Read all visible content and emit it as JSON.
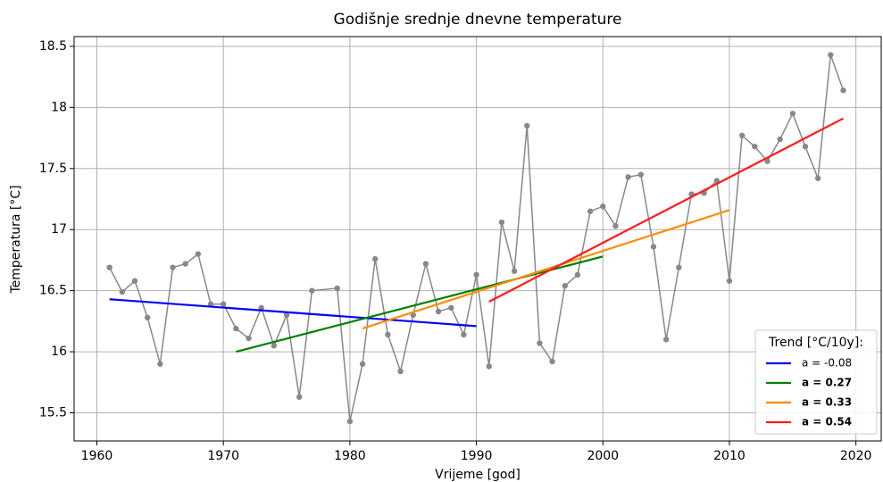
{
  "chart_data": {
    "type": "line",
    "title": "Godišnje srednje dnevne temperature",
    "xlabel": "Vrijeme [god]",
    "ylabel": "Temperatura [°C]",
    "xlim": [
      1958.2,
      2022
    ],
    "ylim": [
      15.27,
      18.58
    ],
    "xticks": [
      1960,
      1970,
      1980,
      1990,
      2000,
      2010,
      2020
    ],
    "yticks": [
      15.5,
      16.0,
      16.5,
      17.0,
      17.5,
      18.0,
      18.5
    ],
    "grid": true,
    "legend_title": "Trend [°C/10y]:",
    "legend_position": "lower right",
    "series": [
      {
        "color": "#888888",
        "marker": true,
        "x": [
          1961,
          1962,
          1963,
          1964,
          1965,
          1966,
          1967,
          1968,
          1969,
          1970,
          1971,
          1972,
          1973,
          1974,
          1975,
          1976,
          1977,
          1979,
          1980,
          1981,
          1982,
          1983,
          1984,
          1985,
          1986,
          1987,
          1988,
          1989,
          1990,
          1991,
          1992,
          1993,
          1994,
          1995,
          1996,
          1997,
          1998,
          1999,
          2000,
          2001,
          2002,
          2003,
          2004,
          2005,
          2006,
          2007,
          2008,
          2009,
          2010,
          2011,
          2012,
          2013,
          2014,
          2015,
          2016,
          2017,
          2018,
          2019
        ],
        "values": [
          16.69,
          16.49,
          16.58,
          16.28,
          15.9,
          16.69,
          16.72,
          16.8,
          16.39,
          16.39,
          16.19,
          16.11,
          16.36,
          16.05,
          16.3,
          15.63,
          16.5,
          16.52,
          15.43,
          15.9,
          16.76,
          16.14,
          15.84,
          16.3,
          16.72,
          16.33,
          16.36,
          16.14,
          16.63,
          15.88,
          17.06,
          16.66,
          17.85,
          16.07,
          15.92,
          16.54,
          16.63,
          17.15,
          17.19,
          17.03,
          17.43,
          17.45,
          16.86,
          16.1,
          16.69,
          17.29,
          17.3,
          17.4,
          16.58,
          17.77,
          17.68,
          17.56,
          17.74,
          17.95,
          17.68,
          17.42,
          18.43,
          18.14
        ]
      },
      {
        "name": "a = -0.08",
        "color": "#0000ff",
        "bold": false,
        "x": [
          1961,
          1990
        ],
        "values": [
          16.43,
          16.21
        ]
      },
      {
        "name": "a = 0.27",
        "color": "#008000",
        "bold": true,
        "x": [
          1971,
          2000
        ],
        "values": [
          16.0,
          16.78
        ]
      },
      {
        "name": "a = 0.33",
        "color": "#ff8c00",
        "bold": true,
        "x": [
          1981,
          2010
        ],
        "values": [
          16.19,
          17.16
        ]
      },
      {
        "name": "a = 0.54",
        "color": "#ff1a1a",
        "bold": true,
        "x": [
          1991,
          2019
        ],
        "values": [
          16.41,
          17.91
        ]
      }
    ]
  }
}
